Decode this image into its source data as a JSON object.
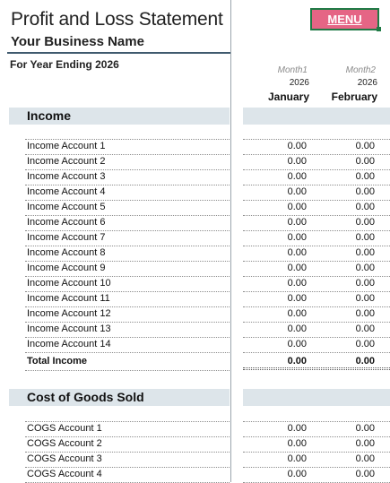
{
  "header": {
    "title": "Profit and Loss Statement",
    "business_name": "Your Business Name",
    "period": "For Year Ending 2026",
    "menu_label": "MENU"
  },
  "months": [
    {
      "label": "Month1",
      "year": "2026",
      "name": "January"
    },
    {
      "label": "Month2",
      "year": "2026",
      "name": "February"
    }
  ],
  "income": {
    "title": "Income",
    "accounts": [
      {
        "name": "Income Account 1",
        "jan": "0.00",
        "feb": "0.00"
      },
      {
        "name": "Income Account 2",
        "jan": "0.00",
        "feb": "0.00"
      },
      {
        "name": "Income Account 3",
        "jan": "0.00",
        "feb": "0.00"
      },
      {
        "name": "Income Account 4",
        "jan": "0.00",
        "feb": "0.00"
      },
      {
        "name": "Income Account 5",
        "jan": "0.00",
        "feb": "0.00"
      },
      {
        "name": "Income Account 6",
        "jan": "0.00",
        "feb": "0.00"
      },
      {
        "name": "Income Account 7",
        "jan": "0.00",
        "feb": "0.00"
      },
      {
        "name": "Income Account 8",
        "jan": "0.00",
        "feb": "0.00"
      },
      {
        "name": "Income Account 9",
        "jan": "0.00",
        "feb": "0.00"
      },
      {
        "name": "Income Account 10",
        "jan": "0.00",
        "feb": "0.00"
      },
      {
        "name": "Income Account 11",
        "jan": "0.00",
        "feb": "0.00"
      },
      {
        "name": "Income Account 12",
        "jan": "0.00",
        "feb": "0.00"
      },
      {
        "name": "Income Account 13",
        "jan": "0.00",
        "feb": "0.00"
      },
      {
        "name": "Income Account 14",
        "jan": "0.00",
        "feb": "0.00"
      }
    ],
    "total": {
      "name": "Total Income",
      "jan": "0.00",
      "feb": "0.00"
    }
  },
  "cogs": {
    "title": "Cost of Goods Sold",
    "accounts": [
      {
        "name": "COGS Account 1",
        "jan": "0.00",
        "feb": "0.00"
      },
      {
        "name": "COGS Account 2",
        "jan": "0.00",
        "feb": "0.00"
      },
      {
        "name": "COGS Account 3",
        "jan": "0.00",
        "feb": "0.00"
      },
      {
        "name": "COGS Account 4",
        "jan": "0.00",
        "feb": "0.00"
      }
    ]
  },
  "colors": {
    "menu_button": "#e56585",
    "menu_border": "#1f7a45",
    "section_band": "#dde5ea",
    "header_rule": "#3f5a6e"
  }
}
